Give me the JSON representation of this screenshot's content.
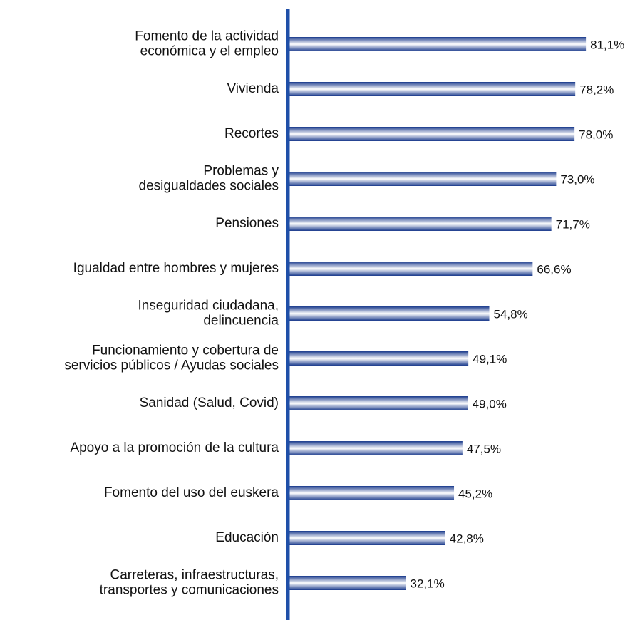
{
  "chart_data": {
    "type": "bar",
    "orientation": "horizontal",
    "categories": [
      "Fomento de la actividad\neconómica y el empleo",
      "Vivienda",
      "Recortes",
      "Problemas y\ndesigualdades sociales",
      "Pensiones",
      "Igualdad entre hombres y mujeres",
      "Inseguridad ciudadana,\ndelincuencia",
      "Funcionamiento y cobertura de\nservicios públicos / Ayudas sociales",
      "Sanidad (Salud, Covid)",
      "Apoyo a la promoción de la cultura",
      "Fomento del uso del euskera",
      "Educación",
      "Carreteras, infraestructuras,\ntransportes y comunicaciones"
    ],
    "values": [
      81.1,
      78.2,
      78.0,
      73.0,
      71.7,
      66.6,
      54.8,
      49.1,
      49.0,
      47.5,
      45.2,
      42.8,
      32.1
    ],
    "value_labels": [
      "81,1%",
      "78,2%",
      "78,0%",
      "73,0%",
      "71,7%",
      "66,6%",
      "54,8%",
      "49,1%",
      "49,0%",
      "47,5%",
      "45,2%",
      "42,8%",
      "32,1%"
    ],
    "color": "#1a3a8c",
    "xlim": [
      0,
      90
    ]
  }
}
